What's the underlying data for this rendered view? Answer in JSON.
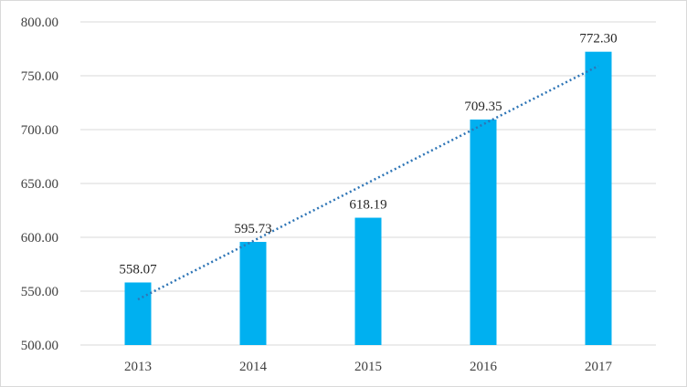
{
  "chart_data": {
    "type": "bar",
    "title": "",
    "xlabel": "",
    "ylabel": "",
    "categories": [
      "2013",
      "2014",
      "2015",
      "2016",
      "2017"
    ],
    "values": [
      558.07,
      595.73,
      618.19,
      709.35,
      772.3
    ],
    "value_labels": [
      "558.07",
      "595.73",
      "618.19",
      "709.35",
      "772.30"
    ],
    "ylim": [
      500,
      800
    ],
    "y_ticks": [
      "500.00",
      "550.00",
      "600.00",
      "650.00",
      "700.00",
      "750.00",
      "800.00"
    ],
    "y_tick_values": [
      500,
      550,
      600,
      650,
      700,
      750,
      800
    ],
    "grid": true,
    "legend": "none",
    "trendline": {
      "type": "linear",
      "style": "dotted"
    },
    "colors": {
      "bar": "#00b0f0",
      "trendline": "#2e75b6",
      "grid": "#d9d9d9"
    }
  }
}
